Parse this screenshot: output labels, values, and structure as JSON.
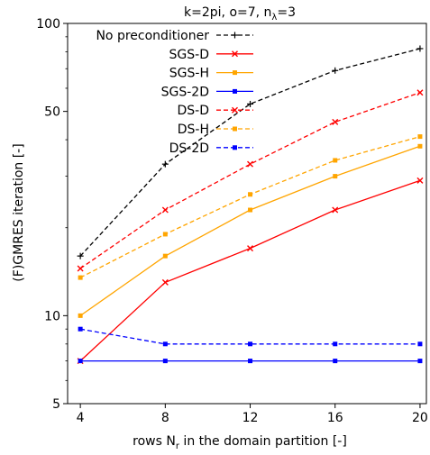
{
  "chart_data": {
    "type": "line",
    "title_parts": {
      "main": "k=2pi, o=7, n",
      "sub": "λ",
      "tail": "=3"
    },
    "xlabel_parts": {
      "main": "rows N",
      "sub": "r",
      "tail": " in the domain partition [-]"
    },
    "ylabel": "(F)GMRES iteration [-]",
    "x": [
      4,
      8,
      12,
      16,
      20
    ],
    "x_ticks": [
      4,
      8,
      12,
      16,
      20
    ],
    "x_tick_labels": [
      "4",
      "8",
      "12",
      "16",
      "20"
    ],
    "xlim": [
      3.4,
      20.3
    ],
    "y_scale": "log",
    "ylim": [
      5,
      100
    ],
    "y_ticks": [
      5,
      10,
      50,
      100
    ],
    "y_tick_labels": [
      "5",
      "10",
      "50",
      "100"
    ],
    "grid": false,
    "legend_position": "top-left",
    "series": [
      {
        "name": "No preconditioner",
        "color": "#000000",
        "dash": "dashed",
        "marker": "plus",
        "values": [
          16,
          33,
          53,
          69,
          82
        ]
      },
      {
        "name": "SGS-D",
        "color": "#ff0000",
        "dash": "solid",
        "marker": "x",
        "values": [
          7,
          13,
          17,
          23,
          29
        ]
      },
      {
        "name": "SGS-H",
        "color": "#ffa500",
        "dash": "solid",
        "marker": "square",
        "values": [
          10,
          16,
          23,
          30,
          38
        ]
      },
      {
        "name": "SGS-2D",
        "color": "#0000ff",
        "dash": "solid",
        "marker": "square",
        "values": [
          7,
          7,
          7,
          7,
          7
        ]
      },
      {
        "name": "DS-D",
        "color": "#ff0000",
        "dash": "dashed",
        "marker": "x",
        "values": [
          14.5,
          23,
          33,
          46,
          58
        ]
      },
      {
        "name": "DS-H",
        "color": "#ffa500",
        "dash": "dashed",
        "marker": "square",
        "values": [
          13.5,
          19,
          26,
          34,
          41
        ]
      },
      {
        "name": "DS-2D",
        "color": "#0000ff",
        "dash": "dashed",
        "marker": "square",
        "values": [
          9,
          8,
          8,
          8,
          8
        ]
      }
    ]
  }
}
